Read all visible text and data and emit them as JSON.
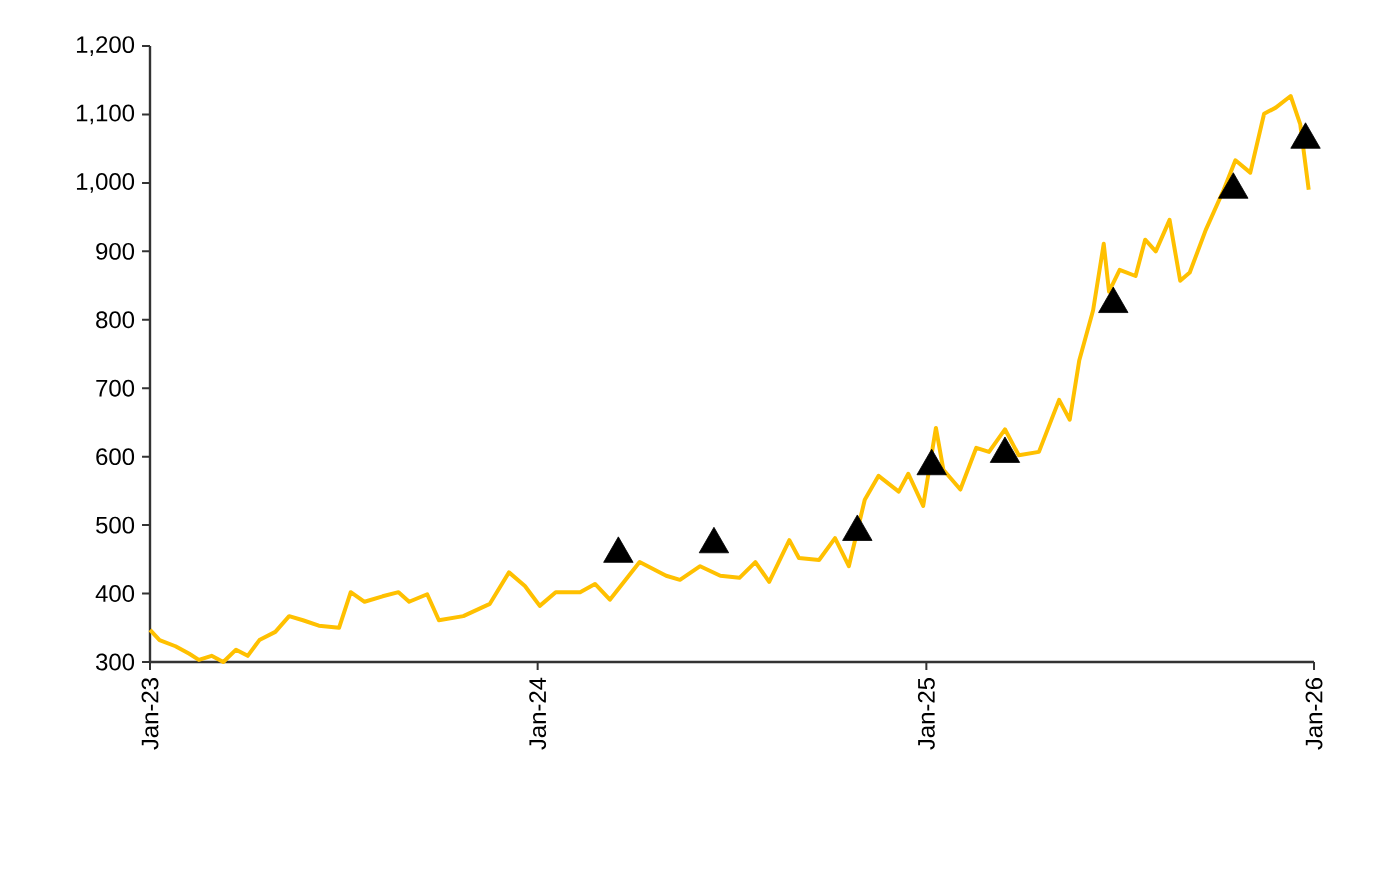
{
  "chart_data": {
    "type": "line",
    "xlim": [
      "2023-01-01",
      "2026-01-01"
    ],
    "xticks": [
      {
        "value": "2023-01-01",
        "label": "Jan-23"
      },
      {
        "value": "2024-01-01",
        "label": "Jan-24"
      },
      {
        "value": "2025-01-01",
        "label": "Jan-25"
      },
      {
        "value": "2026-01-01",
        "label": "Jan-26"
      }
    ],
    "ylim": [
      300,
      1200
    ],
    "yticks": [
      300,
      400,
      500,
      600,
      700,
      800,
      900,
      {
        "value": 1000,
        "label": "1,000"
      },
      {
        "value": 1100,
        "label": "1,100"
      },
      {
        "value": 1200,
        "label": "1,200"
      }
    ],
    "series": [
      {
        "color": "#ffc000",
        "line_style": "solid",
        "x": [
          "2023-01-01",
          "2023-01-10",
          "2023-01-25",
          "2023-02-07",
          "2023-02-16",
          "2023-02-28",
          "2023-03-11",
          "2023-03-23",
          "2023-04-03",
          "2023-04-14",
          "2023-04-29",
          "2023-05-12",
          "2023-05-25",
          "2023-06-09",
          "2023-06-28",
          "2023-07-09",
          "2023-07-22",
          "2023-08-08",
          "2023-08-23",
          "2023-09-02",
          "2023-09-19",
          "2023-09-30",
          "2023-10-23",
          "2023-11-17",
          "2023-12-05",
          "2023-12-20",
          "2024-01-03",
          "2024-01-18",
          "2024-02-10",
          "2024-02-24",
          "2024-03-09",
          "2024-04-06",
          "2024-05-01",
          "2024-05-14",
          "2024-06-02",
          "2024-06-21",
          "2024-07-09",
          "2024-07-24",
          "2024-08-06",
          "2024-08-25",
          "2024-09-03",
          "2024-09-22",
          "2024-10-07",
          "2024-10-20",
          "2024-11-04",
          "2024-11-17",
          "2024-12-06",
          "2024-12-15",
          "2024-12-29",
          "2025-01-10",
          "2025-01-17",
          "2025-02-02",
          "2025-02-17",
          "2025-03-01",
          "2025-03-16",
          "2025-03-29",
          "2025-04-17",
          "2025-05-06",
          "2025-05-16",
          "2025-05-25",
          "2025-06-07",
          "2025-06-17",
          "2025-06-22",
          "2025-07-02",
          "2025-07-17",
          "2025-07-26",
          "2025-08-05",
          "2025-08-18",
          "2025-08-28",
          "2025-09-06",
          "2025-09-21",
          "2025-10-08",
          "2025-10-19",
          "2025-11-02",
          "2025-11-15",
          "2025-11-26",
          "2025-12-10",
          "2025-12-19",
          "2025-12-27"
        ],
        "values": [
          347,
          332,
          323,
          312,
          303,
          309,
          300,
          318,
          309,
          332,
          344,
          367,
          361,
          353,
          350,
          402,
          388,
          396,
          402,
          388,
          399,
          361,
          367,
          385,
          431,
          411,
          382,
          402,
          402,
          414,
          391,
          446,
          426,
          420,
          440,
          426,
          423,
          446,
          417,
          478,
          452,
          449,
          481,
          440,
          537,
          572,
          549,
          575,
          528,
          642,
          581,
          552,
          613,
          607,
          640,
          602,
          607,
          683,
          654,
          741,
          814,
          911,
          841,
          873,
          864,
          917,
          900,
          946,
          857,
          869,
          931,
          990,
          1033,
          1015,
          1101,
          1110,
          1127,
          1086,
          990
        ]
      },
      {
        "type": "scatter",
        "color": "#000000",
        "marker": "triangle",
        "x": [
          "2024-03-17",
          "2024-06-15",
          "2024-10-28",
          "2025-01-06",
          "2025-03-16",
          "2025-06-26",
          "2025-10-17",
          "2025-12-24"
        ],
        "values": [
          458,
          472,
          490,
          586,
          604,
          823,
          990,
          1063
        ]
      }
    ]
  }
}
